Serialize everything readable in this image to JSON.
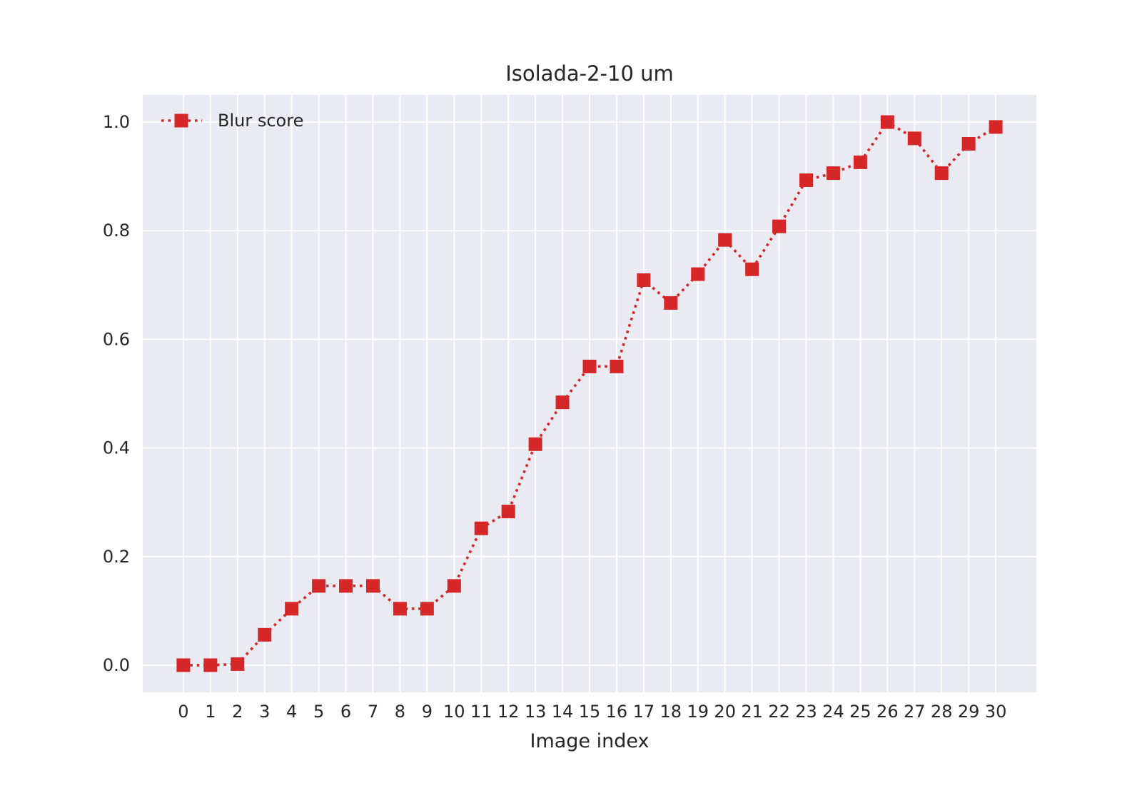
{
  "chart_data": {
    "type": "line",
    "title": "Isolada-2-10 um",
    "xlabel": "Image index",
    "ylabel": "",
    "x": [
      0,
      1,
      2,
      3,
      4,
      5,
      6,
      7,
      8,
      9,
      10,
      11,
      12,
      13,
      14,
      15,
      16,
      17,
      18,
      19,
      20,
      21,
      22,
      23,
      24,
      25,
      26,
      27,
      28,
      29,
      30
    ],
    "xticks": [
      "0",
      "1",
      "2",
      "3",
      "4",
      "5",
      "6",
      "7",
      "8",
      "9",
      "10",
      "11",
      "12",
      "13",
      "14",
      "15",
      "16",
      "17",
      "18",
      "19",
      "20",
      "21",
      "22",
      "23",
      "24",
      "25",
      "26",
      "27",
      "28",
      "29",
      "30"
    ],
    "xlim": [
      -1.5,
      31.5
    ],
    "ylim": [
      -0.05,
      1.05
    ],
    "yticks": [
      0.0,
      0.2,
      0.4,
      0.6,
      0.8,
      1.0
    ],
    "ytick_labels": [
      "0.0",
      "0.2",
      "0.4",
      "0.6",
      "0.8",
      "1.0"
    ],
    "grid": true,
    "legend_position": "top-left",
    "series": [
      {
        "name": "Blur score",
        "color": "#D62728",
        "line_style": "dotted",
        "marker": "square",
        "values": [
          0.0,
          0.0,
          0.002,
          0.056,
          0.104,
          0.146,
          0.146,
          0.146,
          0.104,
          0.104,
          0.146,
          0.252,
          0.283,
          0.407,
          0.484,
          0.55,
          0.55,
          0.709,
          0.667,
          0.72,
          0.783,
          0.729,
          0.808,
          0.893,
          0.906,
          0.926,
          1.0,
          0.97,
          0.906,
          0.96,
          0.991
        ]
      }
    ]
  }
}
